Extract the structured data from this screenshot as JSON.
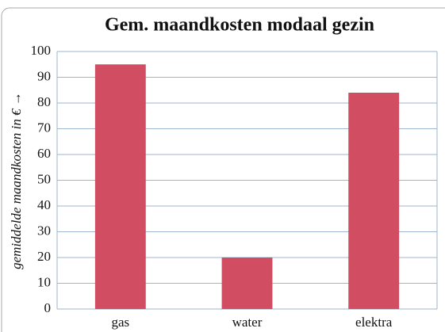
{
  "chart_data": {
    "type": "bar",
    "title": "Gem. maandkosten modaal gezin",
    "y_label": "gemiddelde maandkosten in € →",
    "categories": [
      "gas",
      "water",
      "elektra"
    ],
    "values": [
      95,
      20,
      84
    ],
    "color": "#d14e62",
    "ylim": [
      0,
      100
    ],
    "yticks": [
      0,
      10,
      20,
      30,
      40,
      50,
      60,
      70,
      80,
      90,
      100
    ],
    "grid": true
  }
}
